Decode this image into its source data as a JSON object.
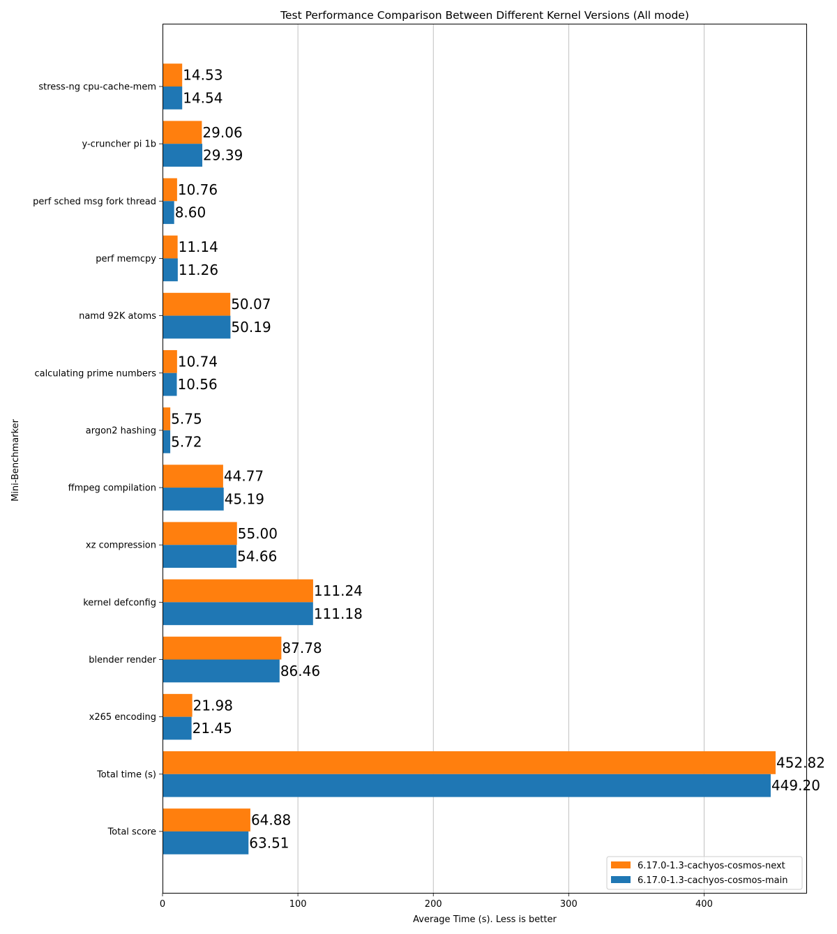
{
  "chart_data": {
    "type": "bar",
    "orientation": "horizontal",
    "title": "Test Performance Comparison Between Different Kernel Versions (All mode)",
    "xlabel": "Average Time (s). Less is better",
    "ylabel": "Mini-Benchmarker",
    "xlim": [
      0,
      475.5
    ],
    "xticks": [
      0,
      100,
      200,
      300,
      400
    ],
    "grid": "x",
    "legend_position": "lower-right",
    "categories": [
      "stress-ng cpu-cache-mem",
      "y-cruncher pi 1b",
      "perf sched msg fork thread",
      "perf memcpy",
      "namd 92K atoms",
      "calculating prime numbers",
      "argon2 hashing",
      "ffmpeg compilation",
      "xz compression",
      "kernel defconfig",
      "blender render",
      "x265 encoding",
      "Total time (s)",
      "Total score"
    ],
    "series": [
      {
        "name": "6.17.0-1.3-cachyos-cosmos-next",
        "color": "#ff7f0e",
        "values": [
          14.53,
          29.06,
          10.76,
          11.14,
          50.07,
          10.74,
          5.75,
          44.77,
          55.0,
          111.24,
          87.78,
          21.98,
          452.82,
          64.88
        ],
        "labels": [
          "14.53",
          "29.06",
          "10.76",
          "11.14",
          "50.07",
          "10.74",
          "5.75",
          "44.77",
          "55.00",
          "111.24",
          "87.78",
          "21.98",
          "452.82",
          "64.88"
        ]
      },
      {
        "name": "6.17.0-1.3-cachyos-cosmos-main",
        "color": "#1f77b4",
        "values": [
          14.54,
          29.39,
          8.6,
          11.26,
          50.19,
          10.56,
          5.72,
          45.19,
          54.66,
          111.18,
          86.46,
          21.45,
          449.2,
          63.51
        ],
        "labels": [
          "14.54",
          "29.39",
          "8.60",
          "11.26",
          "50.19",
          "10.56",
          "5.72",
          "45.19",
          "54.66",
          "111.18",
          "86.46",
          "21.45",
          "449.20",
          "63.51"
        ]
      }
    ]
  }
}
